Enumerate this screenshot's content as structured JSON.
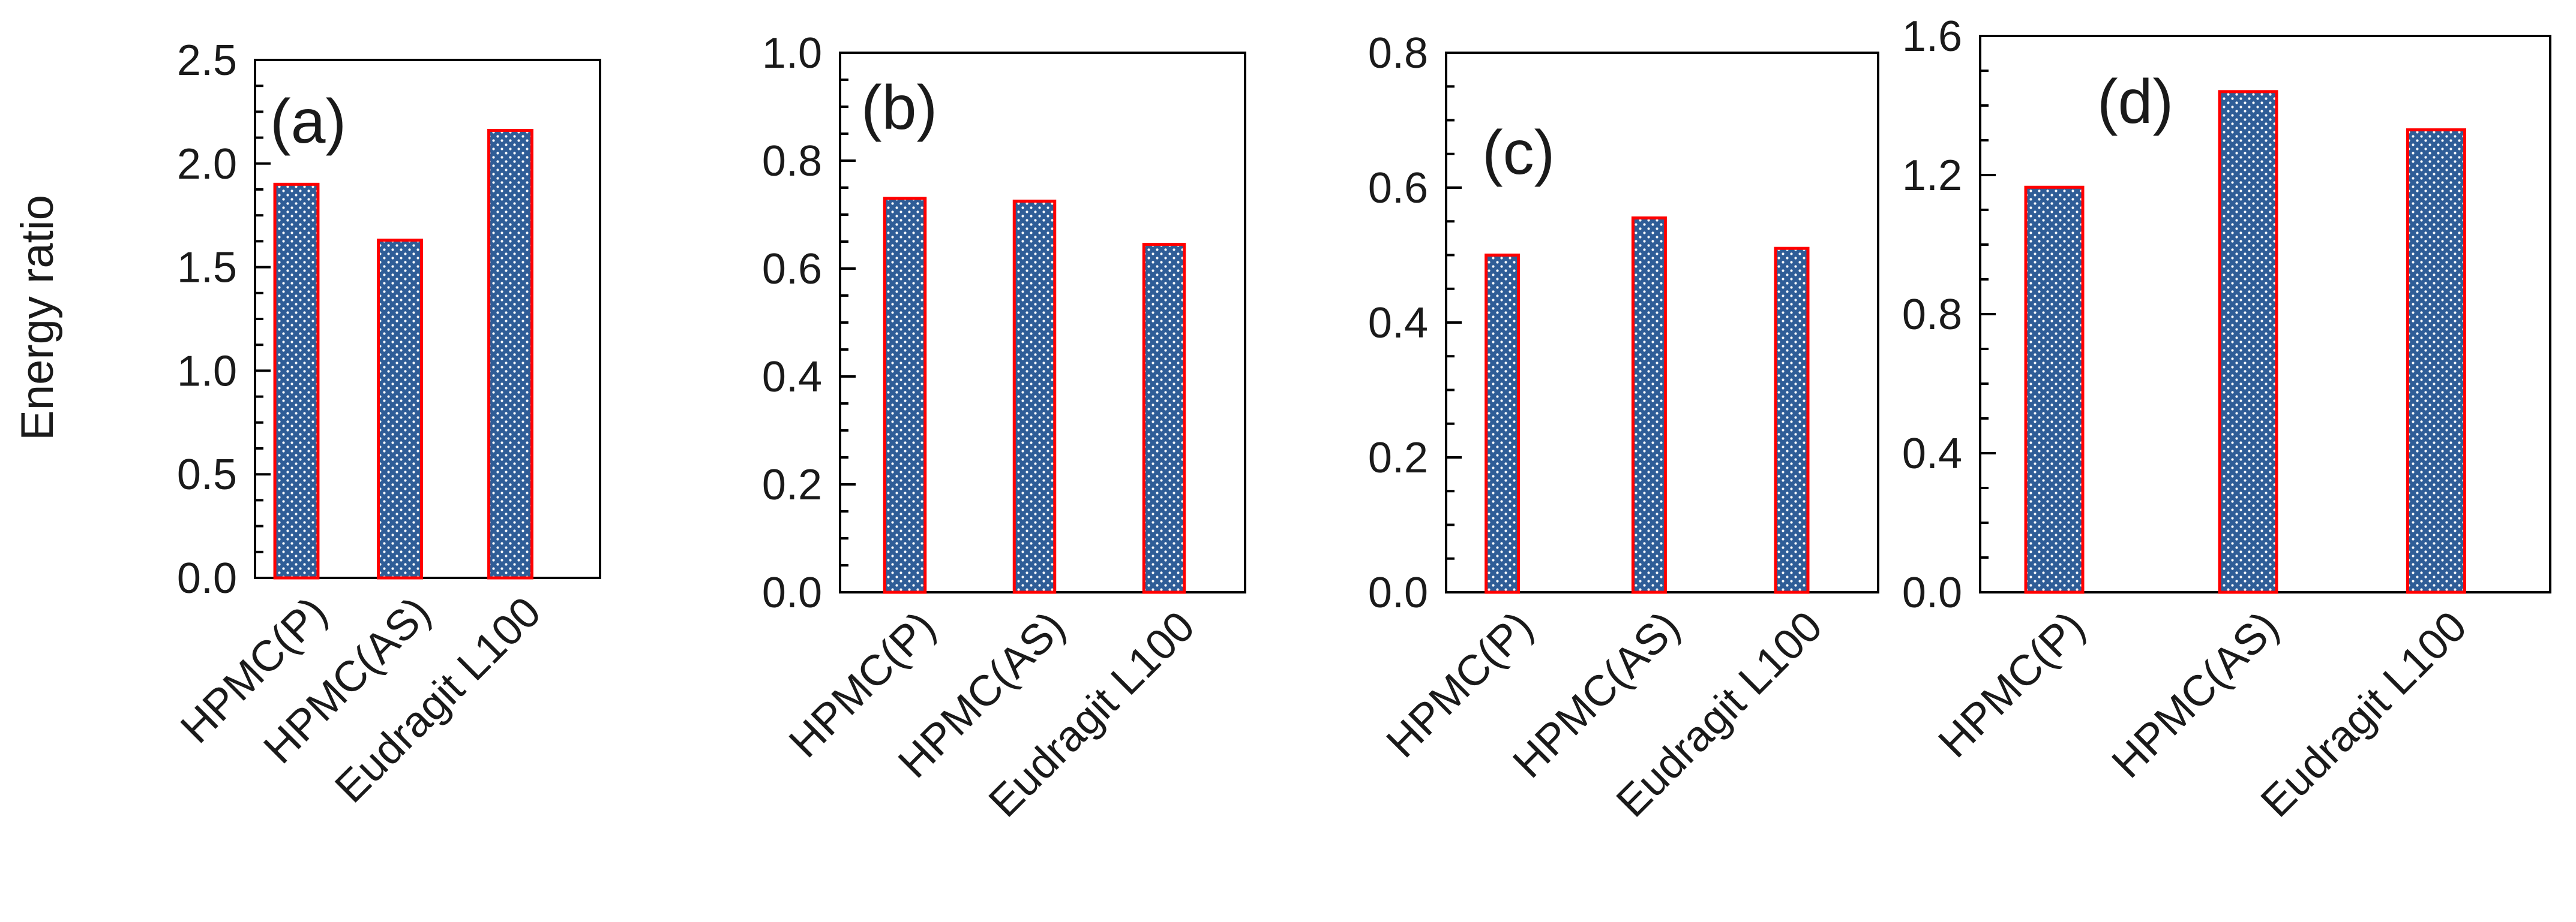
{
  "figure": {
    "ylabel": "Energy ratio"
  },
  "style": {
    "bar_fill": "#2f5d97",
    "bar_dot": "#ffffff",
    "bar_edge": "#ff0000",
    "axis_color": "#000000",
    "text_color": "#1a1a1a"
  },
  "chart_data": [
    {
      "type": "bar",
      "panel_label": "(a)",
      "categories": [
        "HPMC(P)",
        "HPMC(AS)",
        "Eudragit L100"
      ],
      "values": [
        1.9,
        1.63,
        2.16
      ],
      "ylim": [
        0,
        2.5
      ],
      "yticks": [
        0,
        0.5,
        1.0,
        1.5,
        2.0,
        2.5
      ],
      "ytick_labels": [
        "0.0",
        "0.5",
        "1.0",
        "1.5",
        "2.0",
        "2.5"
      ],
      "minor_ticks_per_major": 4,
      "ylabel": "Energy ratio",
      "xlabel": ""
    },
    {
      "type": "bar",
      "panel_label": "(b)",
      "categories": [
        "HPMC(P)",
        "HPMC(AS)",
        "Eudragit L100"
      ],
      "values": [
        0.73,
        0.725,
        0.645
      ],
      "ylim": [
        0,
        1.0
      ],
      "yticks": [
        0,
        0.2,
        0.4,
        0.6,
        0.8,
        1.0
      ],
      "ytick_labels": [
        "0.0",
        "0.2",
        "0.4",
        "0.6",
        "0.8",
        "1.0"
      ],
      "minor_ticks_per_major": 4,
      "ylabel": "",
      "xlabel": ""
    },
    {
      "type": "bar",
      "panel_label": "(c)",
      "categories": [
        "HPMC(P)",
        "HPMC(AS)",
        "Eudragit L100"
      ],
      "values": [
        0.5,
        0.555,
        0.51
      ],
      "ylim": [
        0,
        0.8
      ],
      "yticks": [
        0,
        0.2,
        0.4,
        0.6,
        0.8
      ],
      "ytick_labels": [
        "0.0",
        "0.2",
        "0.4",
        "0.6",
        "0.8"
      ],
      "minor_ticks_per_major": 4,
      "ylabel": "",
      "xlabel": ""
    },
    {
      "type": "bar",
      "panel_label": "(d)",
      "categories": [
        "HPMC(P)",
        "HPMC(AS)",
        "Eudragit L100"
      ],
      "values": [
        1.165,
        1.44,
        1.33
      ],
      "ylim": [
        0,
        1.6
      ],
      "yticks": [
        0,
        0.4,
        0.8,
        1.2,
        1.6
      ],
      "ytick_labels": [
        "0.0",
        "0.4",
        "0.8",
        "1.2",
        "1.6"
      ],
      "minor_ticks_per_major": 4,
      "ylabel": "",
      "xlabel": ""
    }
  ]
}
